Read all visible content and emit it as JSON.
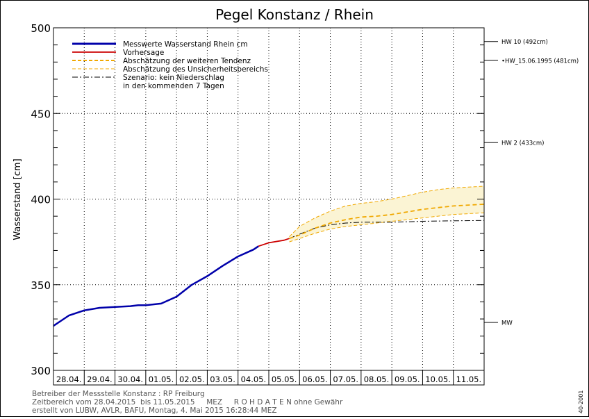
{
  "chart_data": {
    "type": "line",
    "title": "Pegel Konstanz / Rhein",
    "ylabel": "Wasserstand [cm]",
    "ylim": [
      300,
      500
    ],
    "yticks": [
      300,
      350,
      400,
      450,
      500
    ],
    "y_minor_step": 10,
    "xlim": [
      "2015-04-28",
      "2015-05-12"
    ],
    "day_labels": [
      "28.04.",
      "29.04.",
      "30.04.",
      "01.05.",
      "02.05.",
      "03.05.",
      "04.05.",
      "05.05.",
      "06.05.",
      "07.05.",
      "08.05.",
      "09.05.",
      "10.05.",
      "11.05."
    ],
    "grid": true,
    "legend_placement": "top-left",
    "legend": [
      {
        "label": "Messwerte Wasserstand Rhein cm",
        "style": "measured"
      },
      {
        "label": "Vorhersage",
        "style": "forecast"
      },
      {
        "label": "Abschätzung der weiteren Tendenz",
        "style": "trend"
      },
      {
        "label": "Abschätzung des Unsicherheitsbereichs",
        "style": "band"
      },
      {
        "label": "Szenario: kein Niederschlag",
        "style": "scenario"
      },
      {
        "label": "in den kommenden 7 Tagen",
        "style": "none"
      }
    ],
    "reference_levels": [
      {
        "label": "HW 10 (492cm)",
        "value": 492
      },
      {
        "label": "•HW_15.06.1995 (481cm)",
        "value": 481
      },
      {
        "label": "HW 2 (433cm)",
        "value": 433
      },
      {
        "label": "MW",
        "value": 328
      }
    ],
    "series": [
      {
        "name": "Messwerte Wasserstand Rhein cm",
        "color": "#0000aa",
        "x": [
          "2015-04-28 00:00",
          "2015-04-28 06:00",
          "2015-04-28 12:00",
          "2015-04-29 00:00",
          "2015-04-29 12:00",
          "2015-04-30 00:00",
          "2015-04-30 12:00",
          "2015-04-30 18:00",
          "2015-05-01 00:00",
          "2015-05-01 12:00",
          "2015-05-02 00:00",
          "2015-05-02 12:00",
          "2015-05-03 00:00",
          "2015-05-03 12:00",
          "2015-05-04 00:00",
          "2015-05-04 12:00",
          "2015-05-04 16:00"
        ],
        "y": [
          326,
          329,
          332,
          335,
          336.5,
          337,
          337.5,
          338,
          338,
          339,
          343,
          350,
          355,
          361,
          366.5,
          370.5,
          372.5
        ]
      },
      {
        "name": "Vorhersage",
        "color": "#cc0000",
        "x": [
          "2015-05-04 16:00",
          "2015-05-05 00:00",
          "2015-05-05 12:00",
          "2015-05-05 16:00"
        ],
        "y": [
          372.5,
          374.5,
          376,
          377
        ]
      },
      {
        "name": "Abschätzung der weiteren Tendenz",
        "color": "#f0a800",
        "x": [
          "2015-05-05 16:00",
          "2015-05-06 00:00",
          "2015-05-06 12:00",
          "2015-05-07 00:00",
          "2015-05-07 12:00",
          "2015-05-08 00:00",
          "2015-05-08 12:00",
          "2015-05-09 00:00",
          "2015-05-09 12:00",
          "2015-05-10 00:00",
          "2015-05-10 12:00",
          "2015-05-11 00:00",
          "2015-05-11 12:00",
          "2015-05-12 00:00"
        ],
        "y": [
          377,
          379,
          383,
          386,
          388,
          389.5,
          390,
          391,
          392.5,
          394,
          395,
          396,
          396.5,
          397
        ]
      },
      {
        "name": "Abschätzung des Unsicherheitsbereichs (oben)",
        "color": "#f0a800",
        "x": [
          "2015-05-05 16:00",
          "2015-05-06 00:00",
          "2015-05-06 12:00",
          "2015-05-07 00:00",
          "2015-05-07 12:00",
          "2015-05-08 00:00",
          "2015-05-08 12:00",
          "2015-05-09 00:00",
          "2015-05-09 12:00",
          "2015-05-10 00:00",
          "2015-05-10 12:00",
          "2015-05-11 00:00",
          "2015-05-11 12:00",
          "2015-05-12 00:00"
        ],
        "y": [
          378,
          384,
          389,
          393,
          396,
          397.5,
          398.5,
          400,
          402,
          404,
          405.5,
          406.5,
          407,
          407.5
        ]
      },
      {
        "name": "Abschätzung des Unsicherheitsbereichs (unten)",
        "color": "#f0a800",
        "x": [
          "2015-05-05 16:00",
          "2015-05-06 00:00",
          "2015-05-06 12:00",
          "2015-05-07 00:00",
          "2015-05-07 12:00",
          "2015-05-08 00:00",
          "2015-05-08 12:00",
          "2015-05-09 00:00",
          "2015-05-09 12:00",
          "2015-05-10 00:00",
          "2015-05-10 12:00",
          "2015-05-11 00:00",
          "2015-05-11 12:00",
          "2015-05-12 00:00"
        ],
        "y": [
          375,
          377,
          380,
          382.5,
          384,
          385,
          386,
          387,
          388,
          389,
          390,
          391,
          391.5,
          392
        ]
      },
      {
        "name": "Szenario: kein Niederschlag",
        "color": "#000000",
        "x": [
          "2015-05-05 16:00",
          "2015-05-06 00:00",
          "2015-05-06 12:00",
          "2015-05-07 00:00",
          "2015-05-07 12:00",
          "2015-05-08 00:00",
          "2015-05-09 00:00",
          "2015-05-10 00:00",
          "2015-05-11 00:00",
          "2015-05-12 00:00"
        ],
        "y": [
          377,
          379.5,
          383,
          385,
          386,
          386.5,
          386.5,
          387,
          387.3,
          387.5
        ]
      }
    ],
    "colors": {
      "measured": "#0000aa",
      "forecast": "#cc0000",
      "trend": "#f0a800",
      "band_fill": "#fbf4d4",
      "scenario": "#000000",
      "grid": "#000000"
    }
  },
  "footer": {
    "line1": "Betreiber der Messstelle Konstanz : RP Freiburg",
    "line2": "Zeitbereich vom 28.04.2015  bis 11.05.2015     MEZ     R O H D A T E N ohne Gewähr",
    "line3": "erstellt von LUBW, AVLR, BAFU, Montag, 4. Mai 2015 16:28:44 MEZ",
    "code": "40-2001"
  }
}
